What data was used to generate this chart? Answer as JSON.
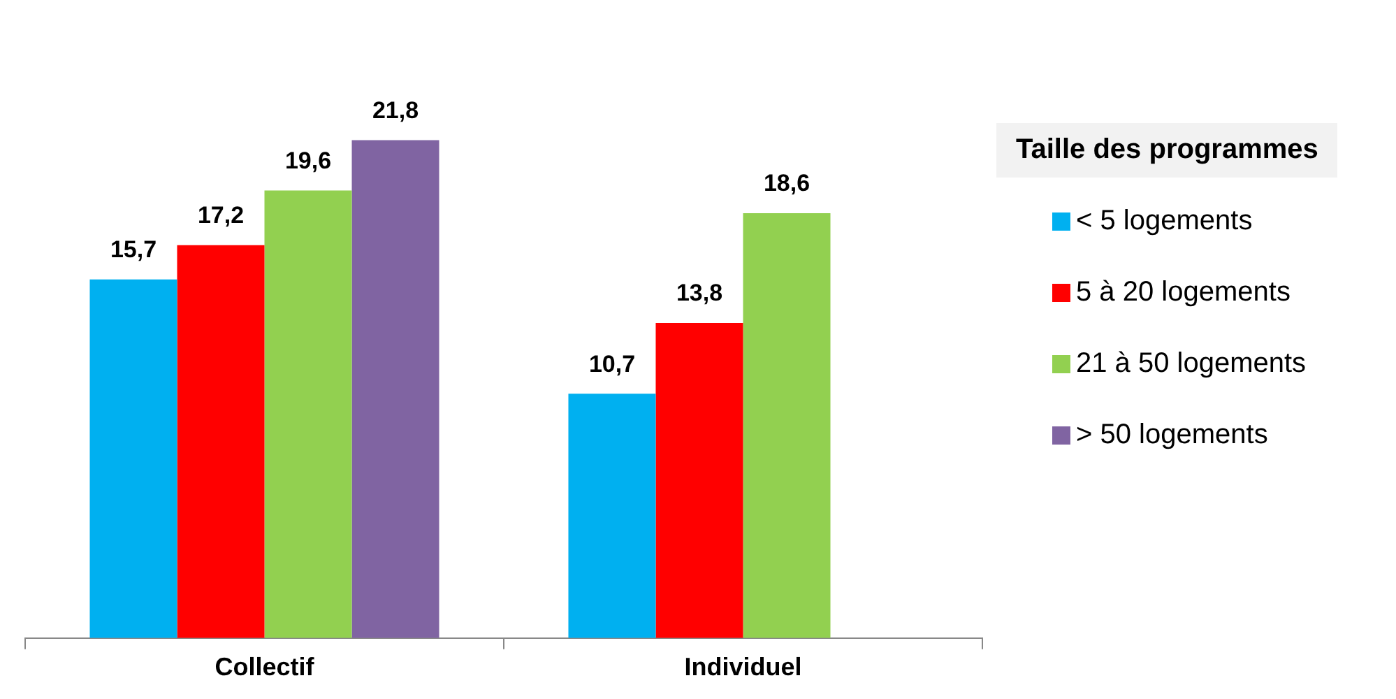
{
  "chart_data": {
    "type": "bar",
    "legend_title": "Taille des programmes",
    "legend": "right",
    "categories": [
      "Collectif",
      "Individuel"
    ],
    "series": [
      {
        "name": "< 5 logements",
        "color": "#00b0f0",
        "values": [
          15.7,
          10.7
        ],
        "value_labels": [
          "15,7",
          "10,7"
        ]
      },
      {
        "name": "5 à 20 logements",
        "color": "#ff0000",
        "values": [
          17.2,
          13.8
        ],
        "value_labels": [
          "17,2",
          "13,8"
        ]
      },
      {
        "name": "21 à 50 logements",
        "color": "#92d050",
        "values": [
          19.6,
          18.6
        ],
        "value_labels": [
          "19,6",
          "18,6"
        ]
      },
      {
        "name": "> 50 logements",
        "color": "#8064a2",
        "values": [
          21.8,
          null
        ],
        "value_labels": [
          "21,8",
          null
        ]
      }
    ]
  }
}
